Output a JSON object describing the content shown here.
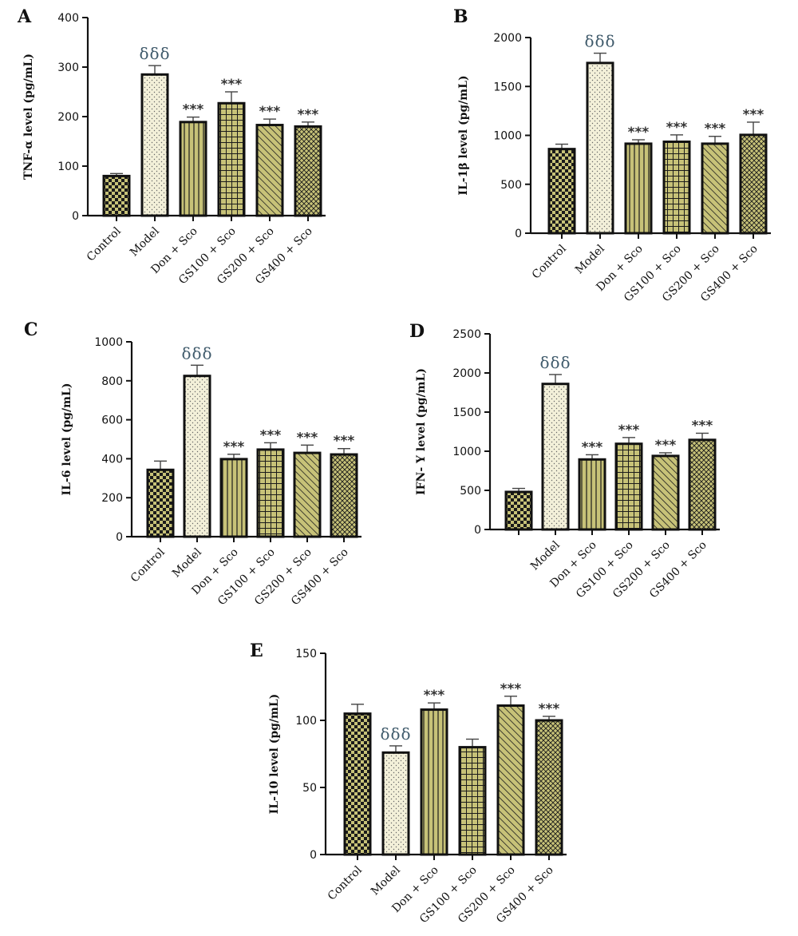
{
  "figure": {
    "panels": [
      "A",
      "B",
      "C",
      "D",
      "E"
    ]
  },
  "colors": {
    "bar_fill": "#c7c278",
    "bar_fill_light": "#f3f0d9",
    "bar_stroke": "#111111",
    "pattern_ink": "#111111",
    "delta_color": "#3f5a6b"
  },
  "chart_data": [
    {
      "panel": "A",
      "type": "bar",
      "ylabel": "TNF-α level (pg/mL)",
      "categories": [
        "Control",
        "Model",
        "Don + Sco",
        "GS100 + Sco",
        "GS200 + Sco",
        "GS400 + Sco"
      ],
      "values": [
        80,
        285,
        189,
        227,
        183,
        180
      ],
      "errors": [
        5,
        18,
        10,
        23,
        12,
        9
      ],
      "ylim": [
        0,
        400
      ],
      "yticks": [
        0,
        100,
        200,
        300,
        400
      ],
      "significance": [
        "",
        "δδδ",
        "***",
        "***",
        "***",
        "***"
      ],
      "patterns": [
        "checker",
        "dots",
        "vlines",
        "grid",
        "diag",
        "crosshatch"
      ],
      "grid": false
    },
    {
      "panel": "B",
      "type": "bar",
      "ylabel": "IL-1β level (pg/mL)",
      "categories": [
        "Control",
        "Model",
        "Don + Sco",
        "GS100 + Sco",
        "GS200 + Sco",
        "GS400 + Sco"
      ],
      "values": [
        860,
        1740,
        915,
        935,
        915,
        1005
      ],
      "errors": [
        50,
        100,
        40,
        70,
        75,
        130
      ],
      "ylim": [
        0,
        2000
      ],
      "yticks": [
        0,
        500,
        1000,
        1500,
        2000
      ],
      "significance": [
        "",
        "δδδ",
        "***",
        "***",
        "***",
        "***"
      ],
      "patterns": [
        "checker",
        "dots",
        "vlines",
        "grid",
        "diag",
        "crosshatch"
      ],
      "grid": false
    },
    {
      "panel": "C",
      "type": "bar",
      "ylabel": "IL-6 level (pg/mL)",
      "categories": [
        "Control",
        "Model",
        "Don + Sco",
        "GS100 + Sco",
        "GS200 + Sco",
        "GS400 + Sco"
      ],
      "values": [
        343,
        825,
        398,
        447,
        430,
        422
      ],
      "errors": [
        45,
        55,
        25,
        35,
        40,
        30
      ],
      "ylim": [
        0,
        1000
      ],
      "yticks": [
        0,
        200,
        400,
        600,
        800,
        1000
      ],
      "significance": [
        "",
        "δδδ",
        "***",
        "***",
        "***",
        "***"
      ],
      "patterns": [
        "checker",
        "dots",
        "vlines",
        "grid",
        "diag",
        "crosshatch"
      ],
      "grid": false
    },
    {
      "panel": "D",
      "type": "bar",
      "ylabel": "IFN- Y level (pg/mL)",
      "categories": [
        "",
        "Model",
        "Don + Sco",
        "GS100 + Sco",
        "GS200 + Sco",
        "GS400 + Sco"
      ],
      "values": [
        480,
        1860,
        895,
        1095,
        940,
        1145
      ],
      "errors": [
        45,
        120,
        60,
        80,
        40,
        85
      ],
      "ylim": [
        0,
        2500
      ],
      "yticks": [
        0,
        500,
        1000,
        1500,
        2000,
        2500
      ],
      "significance": [
        "",
        "δδδ",
        "***",
        "***",
        "***",
        "***"
      ],
      "patterns": [
        "checker",
        "dots",
        "vlines",
        "grid",
        "diag",
        "crosshatch"
      ],
      "grid": false
    },
    {
      "panel": "E",
      "type": "bar",
      "ylabel": "IL-10 level (pg/mL)",
      "categories": [
        "Control",
        "Model",
        "Don + Sco",
        "GS100 + Sco",
        "GS200 + Sco",
        "GS400 + Sco"
      ],
      "values": [
        105,
        76,
        108,
        80,
        111,
        100
      ],
      "errors": [
        7,
        5,
        5,
        6,
        7,
        3
      ],
      "ylim": [
        0,
        150
      ],
      "yticks": [
        0,
        50,
        100,
        150
      ],
      "significance": [
        "",
        "δδδ",
        "***",
        "",
        "***",
        "***"
      ],
      "patterns": [
        "checker",
        "dots",
        "vlines",
        "grid",
        "diag",
        "crosshatch"
      ],
      "grid": false
    }
  ]
}
